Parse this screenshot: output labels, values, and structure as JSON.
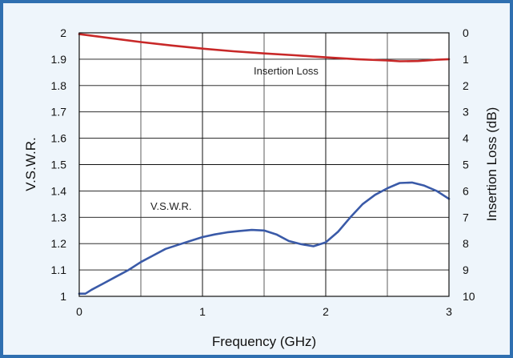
{
  "chart_data": {
    "type": "line",
    "x_axis": {
      "label": "Frequency (GHz)",
      "range": [
        0,
        3
      ],
      "ticks": [
        0,
        1,
        2,
        3
      ],
      "grid_minor_step": 0.5
    },
    "y_left": {
      "label": "V.S.W.R.",
      "range": [
        1,
        2
      ],
      "ticks": [
        "1",
        "1.1",
        "1.2",
        "1.3",
        "1.4",
        "1.5",
        "1.6",
        "1.7",
        "1.8",
        "1.9",
        "2"
      ]
    },
    "y_right": {
      "label": "Insertion Loss (dB)",
      "range": [
        0,
        10
      ],
      "inverted": true,
      "ticks": [
        "0",
        "1",
        "2",
        "3",
        "4",
        "5",
        "6",
        "7",
        "8",
        "9",
        "10"
      ]
    },
    "grid": true,
    "series": [
      {
        "name": "V.S.W.R.",
        "axis": "left",
        "color": "#3a5aa8",
        "x": [
          0.0,
          0.05,
          0.1,
          0.2,
          0.3,
          0.4,
          0.5,
          0.6,
          0.7,
          0.8,
          0.9,
          1.0,
          1.1,
          1.2,
          1.3,
          1.4,
          1.5,
          1.6,
          1.7,
          1.8,
          1.9,
          2.0,
          2.1,
          2.2,
          2.3,
          2.4,
          2.5,
          2.6,
          2.7,
          2.8,
          2.9,
          3.0
        ],
        "y": [
          1.01,
          1.01,
          1.025,
          1.05,
          1.075,
          1.1,
          1.13,
          1.155,
          1.18,
          1.195,
          1.21,
          1.225,
          1.235,
          1.243,
          1.248,
          1.252,
          1.25,
          1.235,
          1.21,
          1.198,
          1.19,
          1.205,
          1.245,
          1.3,
          1.35,
          1.385,
          1.41,
          1.43,
          1.432,
          1.42,
          1.4,
          1.37
        ]
      },
      {
        "name": "Insertion Loss",
        "axis": "right",
        "color": "#c82828",
        "x": [
          0.0,
          0.25,
          0.5,
          0.75,
          1.0,
          1.25,
          1.5,
          1.75,
          2.0,
          2.25,
          2.5,
          2.6,
          2.75,
          2.9,
          3.0
        ],
        "y": [
          0.05,
          0.2,
          0.35,
          0.48,
          0.6,
          0.7,
          0.78,
          0.85,
          0.93,
          1.0,
          1.05,
          1.08,
          1.07,
          1.02,
          1.0
        ]
      }
    ],
    "annotations": [
      {
        "text": "Insertion Loss",
        "series": "Insertion Loss"
      },
      {
        "text": "V.S.W.R.",
        "series": "V.S.W.R."
      }
    ]
  }
}
